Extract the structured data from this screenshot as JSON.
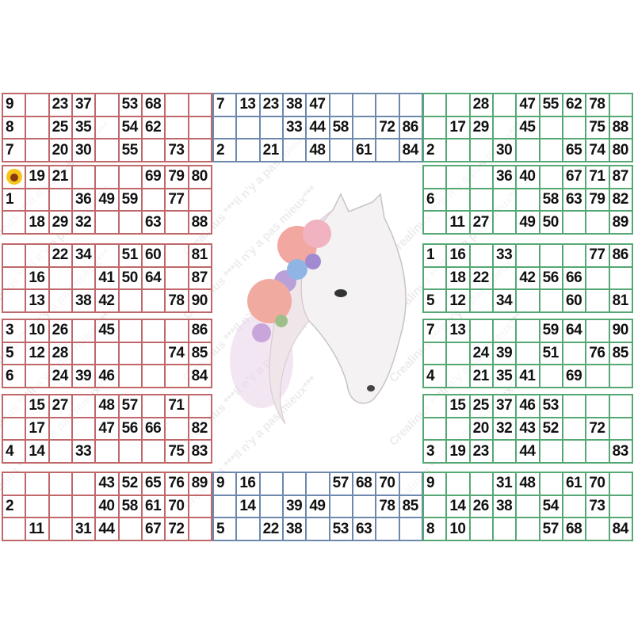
{
  "colors": {
    "left": "#c0676a",
    "middle": "#6d88ad",
    "right": "#55a874"
  },
  "watermark": "Crealinus ***Il n'y a pas mieux***",
  "logo": {
    "icon": "sunflower-logo",
    "text": "Crealinus"
  },
  "cards": {
    "left": [
      {
        "rows": [
          [
            "9",
            "",
            "23",
            "37",
            "",
            "53",
            "68",
            "",
            ""
          ],
          [
            "8",
            "",
            "25",
            "35",
            "",
            "54",
            "62",
            "",
            ""
          ],
          [
            "7",
            "",
            "20",
            "30",
            "",
            "55",
            "",
            "73",
            ""
          ]
        ]
      },
      {
        "rows": [
          [
            "",
            "19",
            "21",
            "",
            "",
            "",
            "69",
            "79",
            "80"
          ],
          [
            "1",
            "",
            "",
            "36",
            "49",
            "59",
            "",
            "77",
            ""
          ],
          [
            "",
            "18",
            "29",
            "32",
            "",
            "",
            "63",
            "",
            "88"
          ]
        ]
      },
      {
        "rows": [
          [
            "",
            "",
            "22",
            "34",
            "",
            "51",
            "60",
            "",
            "81"
          ],
          [
            "",
            "16",
            "",
            "",
            "41",
            "50",
            "64",
            "",
            "87"
          ],
          [
            "",
            "13",
            "",
            "38",
            "42",
            "",
            "",
            "78",
            "90"
          ]
        ]
      },
      {
        "rows": [
          [
            "3",
            "10",
            "26",
            "",
            "45",
            "",
            "",
            "",
            "86"
          ],
          [
            "5",
            "12",
            "28",
            "",
            "",
            "",
            "",
            "74",
            "85"
          ],
          [
            "6",
            "",
            "24",
            "39",
            "46",
            "",
            "",
            "",
            "84"
          ]
        ]
      },
      {
        "rows": [
          [
            "",
            "15",
            "27",
            "",
            "48",
            "57",
            "",
            "71",
            ""
          ],
          [
            "",
            "17",
            "",
            "",
            "47",
            "56",
            "66",
            "",
            "82"
          ],
          [
            "4",
            "14",
            "",
            "33",
            "",
            "",
            "",
            "75",
            "83"
          ]
        ]
      },
      {
        "rows": [
          [
            "",
            "",
            "",
            "",
            "43",
            "52",
            "65",
            "76",
            "89"
          ],
          [
            "2",
            "",
            "",
            "",
            "40",
            "58",
            "61",
            "70",
            ""
          ],
          [
            "",
            "11",
            "",
            "31",
            "44",
            "",
            "67",
            "72",
            ""
          ]
        ]
      }
    ],
    "middle": [
      {
        "rows": [
          [
            "7",
            "13",
            "23",
            "38",
            "47",
            "",
            "",
            "",
            ""
          ],
          [
            "",
            "",
            "",
            "33",
            "44",
            "58",
            "",
            "72",
            "86"
          ],
          [
            "2",
            "",
            "21",
            "",
            "48",
            "",
            "61",
            "",
            "84"
          ]
        ]
      },
      {
        "rows": [
          [
            "9",
            "16",
            "",
            "",
            "",
            "57",
            "68",
            "70",
            ""
          ],
          [
            "",
            "14",
            "",
            "39",
            "49",
            "",
            "",
            "78",
            "85"
          ],
          [
            "5",
            "",
            "22",
            "38",
            "",
            "53",
            "63",
            "",
            ""
          ]
        ]
      }
    ],
    "right": [
      {
        "rows": [
          [
            "",
            "",
            "28",
            "",
            "47",
            "55",
            "62",
            "78",
            ""
          ],
          [
            "",
            "17",
            "29",
            "",
            "45",
            "",
            "",
            "75",
            "88"
          ],
          [
            "2",
            "",
            "",
            "30",
            "",
            "",
            "65",
            "74",
            "80"
          ]
        ]
      },
      {
        "rows": [
          [
            "",
            "",
            "",
            "36",
            "40",
            "",
            "67",
            "71",
            "87"
          ],
          [
            "6",
            "",
            "",
            "",
            "",
            "58",
            "63",
            "79",
            "82"
          ],
          [
            "",
            "11",
            "27",
            "",
            "49",
            "50",
            "",
            "",
            "89"
          ]
        ]
      },
      {
        "rows": [
          [
            "1",
            "16",
            "",
            "33",
            "",
            "",
            "",
            "77",
            "86"
          ],
          [
            "",
            "18",
            "22",
            "",
            "42",
            "56",
            "66",
            "",
            ""
          ],
          [
            "5",
            "12",
            "",
            "34",
            "",
            "",
            "60",
            "",
            "81"
          ]
        ]
      },
      {
        "rows": [
          [
            "7",
            "13",
            "",
            "",
            "",
            "59",
            "64",
            "",
            "90"
          ],
          [
            "",
            "",
            "24",
            "39",
            "",
            "51",
            "",
            "76",
            "85"
          ],
          [
            "4",
            "",
            "21",
            "35",
            "41",
            "",
            "69",
            "",
            ""
          ]
        ]
      },
      {
        "rows": [
          [
            "",
            "15",
            "25",
            "37",
            "46",
            "53",
            "",
            "",
            ""
          ],
          [
            "",
            "",
            "20",
            "32",
            "43",
            "52",
            "",
            "72",
            ""
          ],
          [
            "3",
            "19",
            "23",
            "",
            "44",
            "",
            "",
            "",
            "83"
          ]
        ]
      },
      {
        "rows": [
          [
            "9",
            "",
            "",
            "31",
            "48",
            "",
            "61",
            "70",
            ""
          ],
          [
            "",
            "14",
            "26",
            "38",
            "",
            "54",
            "",
            "73",
            ""
          ],
          [
            "8",
            "10",
            "",
            "",
            "",
            "57",
            "68",
            "",
            "84"
          ]
        ]
      }
    ]
  }
}
